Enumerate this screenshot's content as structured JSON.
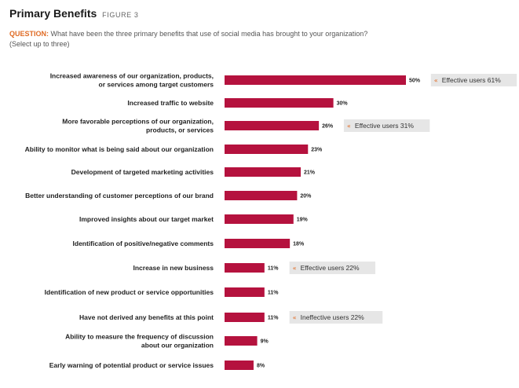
{
  "header": {
    "title": "Primary Benefits",
    "figure_label": "FIGURE 3",
    "question_label": "QUESTION:",
    "question_text": "What have been the three primary benefits that use of social media has brought to your organization?",
    "question_note": "(Select up to three)"
  },
  "colors": {
    "bar": "#b5123e",
    "callout_bg": "#e6e6e6",
    "callout_arrow": "#e06b24"
  },
  "chart_data": {
    "type": "bar",
    "orientation": "horizontal",
    "xlim": [
      0,
      100
    ],
    "grid": false,
    "categories": [
      "Increased awareness of our organization, products,\nor services among target customers",
      "Increased traffic to website",
      "More favorable perceptions of our organization,\nproducts, or services",
      "Ability to monitor what is being said about our organization",
      "Development of targeted marketing activities",
      "Better understanding of customer perceptions of our brand",
      "Improved insights about our target market",
      "Identification of positive/negative comments",
      "Increase in new business",
      "Identification of new product or service opportunities",
      "Have not derived any benefits at this point",
      "Ability to measure the frequency of discussion\nabout our organization",
      "Early warning of potential product or service issues"
    ],
    "values": [
      50,
      30,
      26,
      23,
      21,
      20,
      19,
      18,
      11,
      11,
      11,
      9,
      8
    ],
    "value_labels": [
      "50%",
      "30%",
      "26%",
      "23%",
      "21%",
      "20%",
      "19%",
      "18%",
      "11%",
      "11%",
      "11%",
      "9%",
      "8%"
    ],
    "callouts": [
      {
        "index": 0,
        "text": "Effective users 61%"
      },
      {
        "index": 2,
        "text": "Effective users 31%"
      },
      {
        "index": 8,
        "text": "Effective users 22%"
      },
      {
        "index": 10,
        "text": "Ineffective users 22%"
      }
    ]
  }
}
